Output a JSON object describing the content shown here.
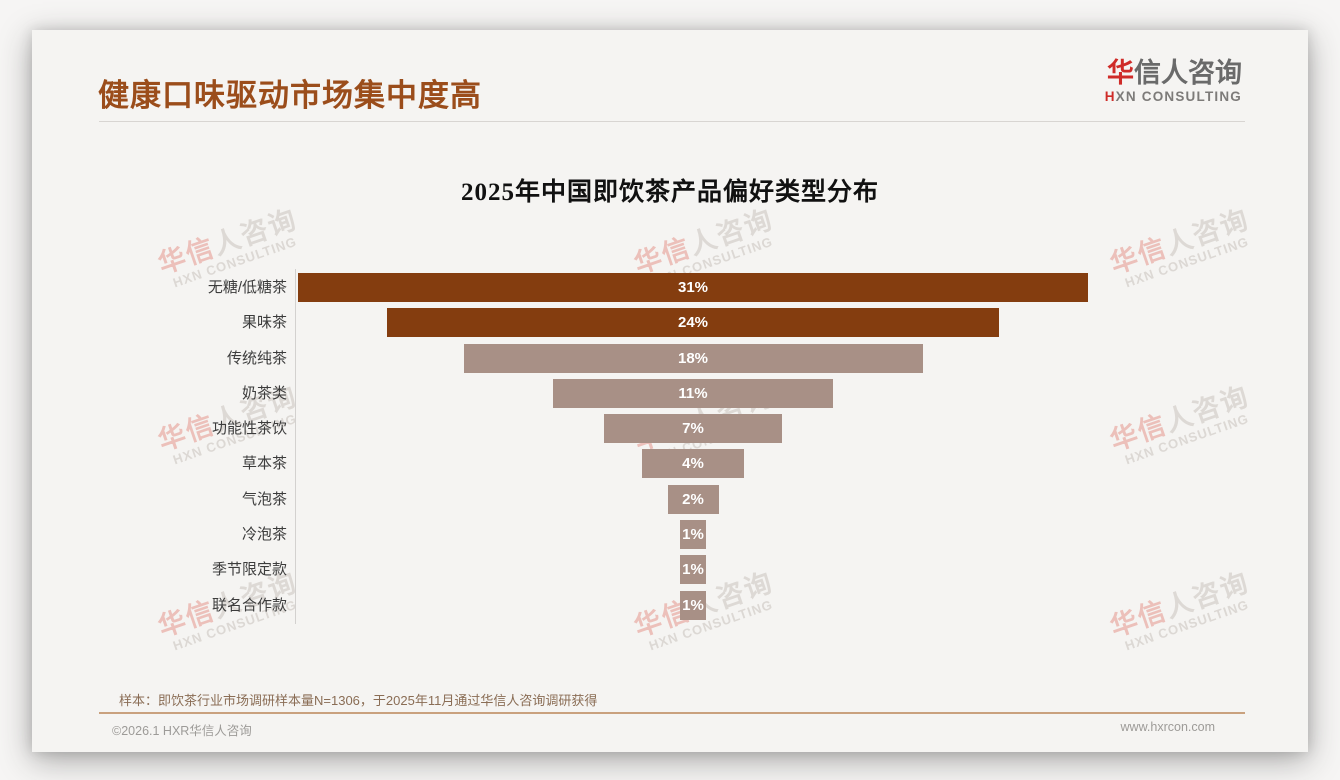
{
  "header": {
    "title": "健康口味驱动市场集中度高",
    "logo": {
      "zh_first": "华",
      "zh_rest": "信人咨询",
      "en_first": "H",
      "en_rest": "XN CONSULTING"
    }
  },
  "watermark": {
    "zh_first": "华信",
    "zh_rest": "人咨询",
    "en": "HXN CONSULTING"
  },
  "chart_data": {
    "type": "bar",
    "variant": "horizontal-centered-funnel",
    "title": "2025年中国即饮茶产品偏好类型分布",
    "categories": [
      "无糖/低糖茶",
      "果味茶",
      "传统纯茶",
      "奶茶类",
      "功能性茶饮",
      "草本茶",
      "气泡茶",
      "冷泡茶",
      "季节限定款",
      "联名合作款"
    ],
    "values": [
      31,
      24,
      18,
      11,
      7,
      4,
      2,
      1,
      1,
      1
    ],
    "value_labels": [
      "31%",
      "24%",
      "18%",
      "11%",
      "7%",
      "4%",
      "2%",
      "1%",
      "1%",
      "1%"
    ],
    "unit": "%",
    "xlim": [
      0,
      31
    ],
    "gridlines": "off",
    "highlight_count": 2,
    "colors": {
      "highlight": "#843D0F",
      "normal": "#A89086",
      "value_text": "#FFFFFF"
    }
  },
  "footnote": {
    "sample_note": "样本：即饮茶行业市场调研样本量N=1306，于2025年11月通过华信人咨询调研获得"
  },
  "footer": {
    "copyright": "©2026.1 HXR华信人咨询",
    "website": "www.hxrcon.com"
  }
}
